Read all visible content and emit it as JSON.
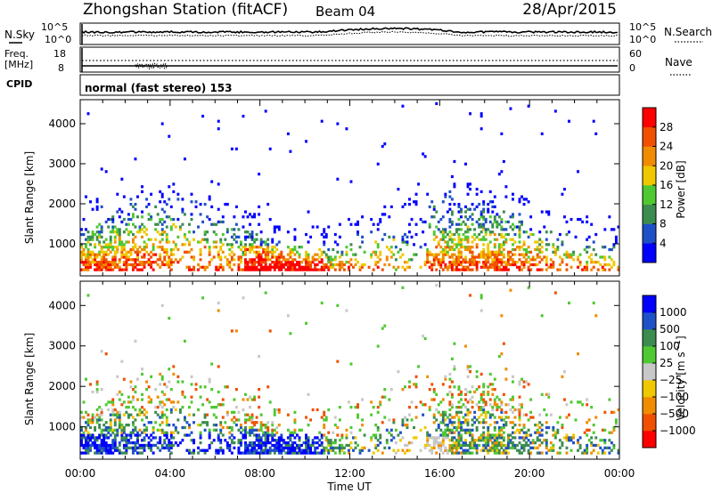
{
  "header": {
    "station": "Zhongshan Station (fitACF)",
    "beam": "Beam 04",
    "date": "28/Apr/2015"
  },
  "noise_panel": {
    "left_label": "N.Sky",
    "right_label": "N.Search",
    "left_ticks": [
      "10^5",
      "10^0"
    ],
    "right_ticks": [
      "10^5",
      "10^0"
    ]
  },
  "freq_panel": {
    "left_label_line1": "Freq.",
    "left_label_line2": "[MHz]",
    "right_label": "Nave",
    "left_ticks": [
      "18",
      "8"
    ],
    "right_ticks": [
      "60",
      "0"
    ]
  },
  "cpid": {
    "label": "CPID",
    "text": "normal (fast stereo) 153"
  },
  "colors": {
    "power_scale": [
      "#0000ff",
      "#1e50c8",
      "#3c8c50",
      "#50c832",
      "#f0c800",
      "#f08c00",
      "#f05000",
      "#ff0000"
    ],
    "velocity_scale": [
      "#ff0000",
      "#f05000",
      "#f08c00",
      "#f0c800",
      "#c8c8c8",
      "#50c832",
      "#3c8c50",
      "#1e50c8",
      "#0000ff"
    ]
  },
  "chart_data": [
    {
      "type": "heatmap",
      "name": "power",
      "ylabel": "Slant Range [km]",
      "y_ticks": [
        1000,
        2000,
        3000,
        4000
      ],
      "ylim": [
        200,
        4600
      ],
      "x_ticks": [
        "00:00",
        "04:00",
        "08:00",
        "12:00",
        "16:00",
        "20:00",
        "00:00"
      ],
      "colorbar_title": "Power [dB]",
      "colorbar_ticks": [
        "4",
        "8",
        "12",
        "16",
        "20",
        "24",
        "28"
      ],
      "colorbar_range": [
        0,
        32
      ]
    },
    {
      "type": "heatmap",
      "name": "velocity",
      "ylabel": "Slant Range [km]",
      "y_ticks": [
        1000,
        2000,
        3000,
        4000
      ],
      "ylim": [
        200,
        4600
      ],
      "x_ticks": [
        "00:00",
        "04:00",
        "08:00",
        "12:00",
        "16:00",
        "20:00",
        "00:00"
      ],
      "xlabel": "Time UT",
      "colorbar_title": "Velocity [m s^-1]",
      "colorbar_ticks": [
        "1000",
        "500",
        "100",
        "25",
        "−25",
        "−100",
        "−500",
        "−1000"
      ]
    }
  ]
}
